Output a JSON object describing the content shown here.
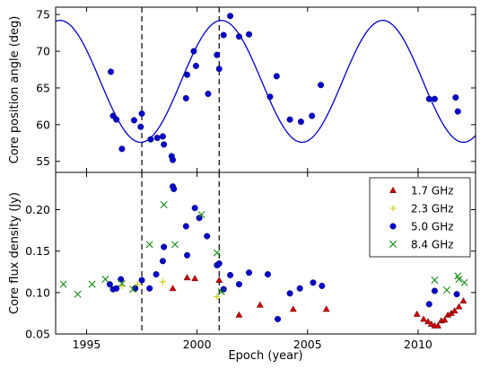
{
  "chart_data": [
    {
      "type": "scatter",
      "panel": "top",
      "ylabel": "Core position angle (deg)",
      "xlim": [
        1993.6,
        2012.6
      ],
      "ylim": [
        53.5,
        76
      ],
      "yticks": [
        55,
        60,
        65,
        70,
        75
      ],
      "vertical_lines": [
        1997.5,
        2001.0
      ],
      "series": [
        {
          "marker": "circle",
          "color": "#0000cc",
          "points": [
            [
              1996.1,
              67.2
            ],
            [
              1996.2,
              61.2
            ],
            [
              1996.35,
              60.7
            ],
            [
              1996.6,
              56.7
            ],
            [
              1997.15,
              60.6
            ],
            [
              1997.45,
              59.7
            ],
            [
              1997.5,
              61.5
            ],
            [
              1997.9,
              58.0
            ],
            [
              1998.2,
              58.2
            ],
            [
              1998.45,
              58.4
            ],
            [
              1998.5,
              57.3
            ],
            [
              1998.85,
              55.7
            ],
            [
              1998.9,
              55.2
            ],
            [
              1999.5,
              63.6
            ],
            [
              1999.55,
              66.8
            ],
            [
              1999.85,
              70.0
            ],
            [
              1999.95,
              68.0
            ],
            [
              2000.5,
              64.2
            ],
            [
              2000.9,
              69.5
            ],
            [
              2001.0,
              67.6
            ],
            [
              2001.2,
              72.2
            ],
            [
              2001.5,
              74.8
            ],
            [
              2001.9,
              72.0
            ],
            [
              2002.35,
              72.3
            ],
            [
              2003.3,
              63.8
            ],
            [
              2003.6,
              66.6
            ],
            [
              2004.2,
              60.7
            ],
            [
              2004.7,
              60.4
            ],
            [
              2005.2,
              61.2
            ],
            [
              2005.6,
              65.4
            ],
            [
              2010.5,
              63.5
            ],
            [
              2010.75,
              63.5
            ],
            [
              2011.7,
              63.7
            ],
            [
              2011.8,
              61.8
            ]
          ]
        }
      ],
      "model_curve": {
        "color": "#0000cc",
        "mean": 65.9,
        "amplitude": 8.3,
        "period_years": 7.3,
        "peak_epoch": 2001.1
      }
    },
    {
      "type": "scatter",
      "panel": "bottom",
      "xlabel": "Epoch (year)",
      "ylabel": "Core flux density (Jy)",
      "xlim": [
        1993.6,
        2012.6
      ],
      "ylim": [
        0.05,
        0.245
      ],
      "xticks": [
        1995,
        2000,
        2005,
        2010
      ],
      "yticks": [
        0.05,
        0.1,
        0.15,
        0.2
      ],
      "ytick_labels": [
        "0.05",
        "0.10",
        "0.15",
        "0.20"
      ],
      "vertical_lines": [
        1997.5,
        2001.0
      ],
      "legend_position": "top-right",
      "series": [
        {
          "name": "1.7 GHz",
          "marker": "triangle",
          "color": "#cc0000",
          "points": [
            [
              1998.9,
              0.105
            ],
            [
              1999.55,
              0.118
            ],
            [
              1999.9,
              0.117
            ],
            [
              2001.0,
              0.115
            ],
            [
              2001.9,
              0.073
            ],
            [
              2002.85,
              0.085
            ],
            [
              2004.35,
              0.08
            ],
            [
              2005.85,
              0.08
            ],
            [
              2009.95,
              0.074
            ],
            [
              2010.25,
              0.068
            ],
            [
              2010.45,
              0.065
            ],
            [
              2010.6,
              0.062
            ],
            [
              2010.75,
              0.06
            ],
            [
              2010.9,
              0.06
            ],
            [
              2011.05,
              0.066
            ],
            [
              2011.2,
              0.067
            ],
            [
              2011.35,
              0.073
            ],
            [
              2011.5,
              0.075
            ],
            [
              2011.65,
              0.078
            ],
            [
              2011.85,
              0.083
            ],
            [
              2012.05,
              0.09
            ]
          ]
        },
        {
          "name": "2.3 GHz",
          "marker": "plus",
          "color": "#cccc00",
          "points": [
            [
              1996.6,
              0.108
            ],
            [
              1997.3,
              0.11
            ],
            [
              1998.45,
              0.113
            ],
            [
              2000.9,
              0.095
            ]
          ]
        },
        {
          "name": "5.0 GHz",
          "marker": "circle",
          "color": "#0000cc",
          "points": [
            [
              1996.05,
              0.11
            ],
            [
              1996.2,
              0.104
            ],
            [
              1996.35,
              0.105
            ],
            [
              1996.55,
              0.116
            ],
            [
              1997.2,
              0.105
            ],
            [
              1997.5,
              0.115
            ],
            [
              1997.85,
              0.105
            ],
            [
              1998.15,
              0.122
            ],
            [
              1998.45,
              0.138
            ],
            [
              1998.5,
              0.155
            ],
            [
              1998.9,
              0.228
            ],
            [
              1998.95,
              0.225
            ],
            [
              1999.5,
              0.18
            ],
            [
              1999.55,
              0.145
            ],
            [
              1999.9,
              0.202
            ],
            [
              2000.1,
              0.19
            ],
            [
              2000.45,
              0.168
            ],
            [
              2000.9,
              0.133
            ],
            [
              2001.0,
              0.135
            ],
            [
              2001.2,
              0.104
            ],
            [
              2001.5,
              0.121
            ],
            [
              2001.9,
              0.11
            ],
            [
              2002.35,
              0.124
            ],
            [
              2003.2,
              0.122
            ],
            [
              2003.65,
              0.068
            ],
            [
              2004.2,
              0.099
            ],
            [
              2004.65,
              0.105
            ],
            [
              2005.25,
              0.112
            ],
            [
              2005.65,
              0.108
            ],
            [
              2010.5,
              0.086
            ],
            [
              2010.75,
              0.102
            ],
            [
              2011.75,
              0.098
            ]
          ]
        },
        {
          "name": "8.4 GHz",
          "marker": "x",
          "color": "#008000",
          "points": [
            [
              1993.95,
              0.11
            ],
            [
              1994.6,
              0.098
            ],
            [
              1995.25,
              0.11
            ],
            [
              1995.85,
              0.116
            ],
            [
              1996.6,
              0.111
            ],
            [
              1997.1,
              0.104
            ],
            [
              1997.85,
              0.158
            ],
            [
              1998.5,
              0.206
            ],
            [
              1999.0,
              0.158
            ],
            [
              2000.2,
              0.194
            ],
            [
              2000.9,
              0.148
            ],
            [
              2001.1,
              0.101
            ],
            [
              2010.75,
              0.115
            ],
            [
              2011.3,
              0.103
            ],
            [
              2011.8,
              0.12
            ],
            [
              2011.85,
              0.116
            ],
            [
              2012.1,
              0.112
            ]
          ]
        }
      ]
    }
  ]
}
